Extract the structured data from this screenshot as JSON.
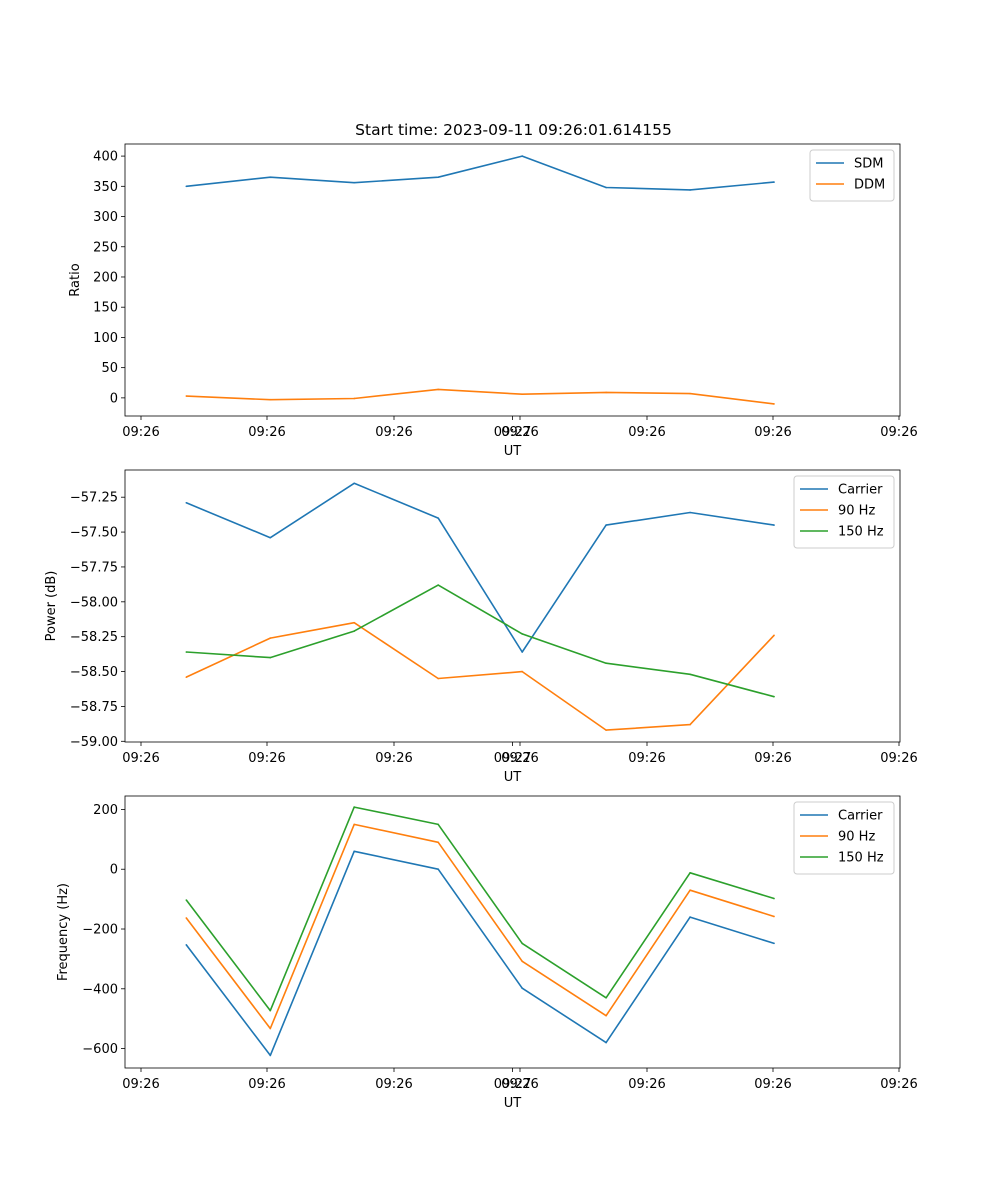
{
  "chart_data": [
    {
      "type": "line",
      "title": "Start time: 2023-09-11 09:26:01.614155",
      "xlabel": "UT",
      "ylabel": "Ratio",
      "x_tick_labels": [
        "09:26",
        "09:26",
        "09:26",
        "09:26",
        "09:26",
        "09:26",
        "09:26",
        "09:27"
      ],
      "x": [
        1,
        2,
        3,
        4,
        5,
        6,
        7,
        8
      ],
      "xlim": [
        0.27,
        9.5
      ],
      "ylim": [
        -30,
        420
      ],
      "y_ticks": [
        0,
        50,
        100,
        150,
        200,
        250,
        300,
        350,
        400
      ],
      "legend_position": "top-right",
      "series": [
        {
          "name": "SDM",
          "color": "#1f77b4",
          "values": [
            350,
            365,
            356,
            365,
            400,
            348,
            344,
            357
          ]
        },
        {
          "name": "DDM",
          "color": "#ff7f0e",
          "values": [
            3,
            -3,
            -1,
            14,
            6,
            9,
            7,
            -10
          ]
        }
      ]
    },
    {
      "type": "line",
      "title": "",
      "xlabel": "UT",
      "ylabel": "Power (dB)",
      "x_tick_labels": [
        "09:26",
        "09:26",
        "09:26",
        "09:26",
        "09:26",
        "09:26",
        "09:26",
        "09:27"
      ],
      "x": [
        1,
        2,
        3,
        4,
        5,
        6,
        7,
        8
      ],
      "xlim": [
        0.27,
        9.5
      ],
      "ylim": [
        -59.005,
        -57.055
      ],
      "y_ticks": [
        -59.0,
        -58.75,
        -58.5,
        -58.25,
        -58.0,
        -57.75,
        -57.5,
        -57.25
      ],
      "y_tick_labels": [
        "−59.00",
        "−58.75",
        "−58.50",
        "−58.25",
        "−58.00",
        "−57.75",
        "−57.50",
        "−57.25"
      ],
      "legend_position": "top-right",
      "series": [
        {
          "name": "Carrier",
          "color": "#1f77b4",
          "values": [
            -57.29,
            -57.54,
            -57.15,
            -57.4,
            -58.36,
            -57.45,
            -57.36,
            -57.45
          ]
        },
        {
          "name": "90 Hz",
          "color": "#ff7f0e",
          "values": [
            -58.54,
            -58.26,
            -58.15,
            -58.55,
            -58.5,
            -58.92,
            -58.88,
            -58.24
          ]
        },
        {
          "name": "150 Hz",
          "color": "#2ca02c",
          "values": [
            -58.36,
            -58.4,
            -58.21,
            -57.88,
            -58.23,
            -58.44,
            -58.52,
            -58.68
          ]
        }
      ]
    },
    {
      "type": "line",
      "title": "",
      "xlabel": "UT",
      "ylabel": "Frequency (Hz)",
      "x_tick_labels": [
        "09:26",
        "09:26",
        "09:26",
        "09:26",
        "09:26",
        "09:26",
        "09:26",
        "09:27"
      ],
      "x": [
        1,
        2,
        3,
        4,
        5,
        6,
        7,
        8
      ],
      "xlim": [
        0.27,
        9.5
      ],
      "ylim": [
        -665,
        245
      ],
      "y_ticks": [
        -600,
        -400,
        -200,
        0,
        200
      ],
      "y_tick_labels": [
        "−600",
        "−400",
        "−200",
        "0",
        "200"
      ],
      "legend_position": "top-right",
      "series": [
        {
          "name": "Carrier",
          "color": "#1f77b4",
          "values": [
            -253,
            -623,
            60,
            0,
            -398,
            -580,
            -160,
            -248
          ]
        },
        {
          "name": "90 Hz",
          "color": "#ff7f0e",
          "values": [
            -163,
            -533,
            150,
            90,
            -308,
            -490,
            -70,
            -158
          ]
        },
        {
          "name": "150 Hz",
          "color": "#2ca02c",
          "values": [
            -103,
            -473,
            208,
            150,
            -248,
            -430,
            -12,
            -98
          ]
        }
      ]
    }
  ]
}
